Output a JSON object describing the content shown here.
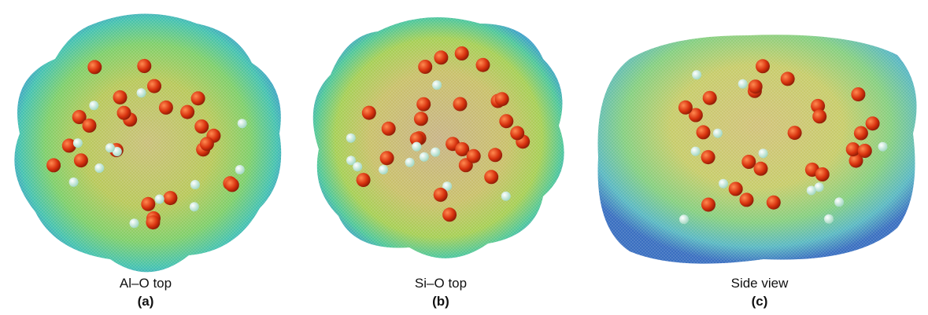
{
  "panels": [
    {
      "caption": "Al–O top",
      "label": "(a)"
    },
    {
      "caption": "Si–O top",
      "label": "(b)"
    },
    {
      "caption": "Side view",
      "label": "(c)"
    }
  ]
}
